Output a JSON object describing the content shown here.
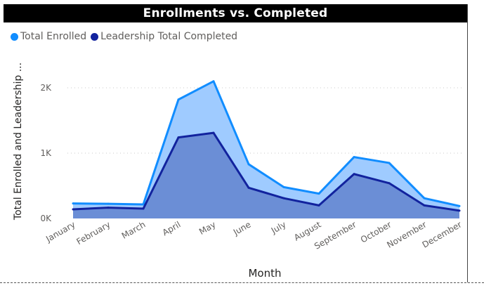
{
  "chart_data": {
    "type": "area",
    "title": "Enrollments vs. Completed",
    "xlabel": "Month",
    "ylabel": "Total Enrolled and Leadership ...",
    "categories": [
      "January",
      "February",
      "March",
      "April",
      "May",
      "June",
      "July",
      "August",
      "September",
      "October",
      "November",
      "December"
    ],
    "ylim": [
      0,
      2000
    ],
    "yticks": [
      0,
      1000,
      2000
    ],
    "ytick_labels": [
      "0K",
      "1K",
      "2K"
    ],
    "grid": true,
    "legend_position": "top-left",
    "series": [
      {
        "name": "Total Enrolled",
        "color": "#118DFF",
        "fill": "#9FCBFF",
        "values": [
          230,
          225,
          215,
          1820,
          2100,
          830,
          480,
          380,
          940,
          850,
          310,
          190
        ]
      },
      {
        "name": "Leadership Total Completed",
        "color": "#12239E",
        "fill": "#6B8ED6",
        "values": [
          140,
          165,
          150,
          1240,
          1310,
          470,
          310,
          200,
          680,
          540,
          200,
          120
        ]
      }
    ]
  }
}
